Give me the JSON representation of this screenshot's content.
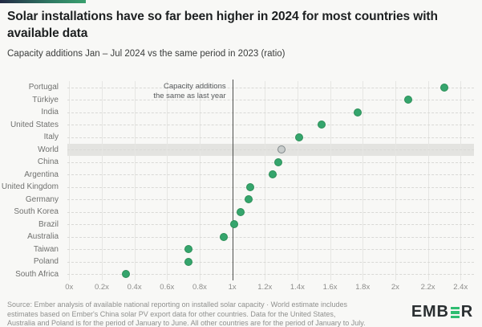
{
  "header": {
    "title": "Solar installations have so far been higher in 2024 for most countries with available data",
    "subtitle": "Capacity additions Jan – Jul 2024 vs the same period in 2023 (ratio)"
  },
  "chart_data": {
    "type": "scatter",
    "title": "Solar installations have so far been higher in 2024 for most countries with available data",
    "subtitle": "Capacity additions Jan – Jul 2024 vs the same period in 2023 (ratio)",
    "xlabel": "",
    "ylabel": "",
    "xlim": [
      0,
      2.4
    ],
    "grid": "vertical solid, horizontal dashed per category",
    "x_tick_values": [
      0,
      0.2,
      0.4,
      0.6,
      0.8,
      1,
      1.2,
      1.4,
      1.6,
      1.8,
      2,
      2.2,
      2.4
    ],
    "x_tick_labels": [
      "0x",
      "0.2x",
      "0.4x",
      "0.6x",
      "0.8x",
      "1x",
      "1.2x",
      "1.4x",
      "1.6x",
      "1.8x",
      "2x",
      "2.2x",
      "2.4x"
    ],
    "categories": [
      "Portugal",
      "Türkiye",
      "India",
      "United States",
      "Italy",
      "World",
      "China",
      "Argentina",
      "United Kingdom",
      "Germany",
      "South Korea",
      "Brazil",
      "Australia",
      "Taiwan",
      "Poland",
      "South Africa"
    ],
    "values": [
      2.3,
      2.08,
      1.77,
      1.55,
      1.41,
      1.3,
      1.28,
      1.25,
      1.11,
      1.1,
      1.05,
      1.01,
      0.95,
      0.73,
      0.73,
      0.35
    ],
    "highlight_category": "World",
    "reference_line": {
      "value": 1,
      "label_line1": "Capacity additions",
      "label_line2": "the same as last year"
    }
  },
  "colors": {
    "accent_green": "#35a56d",
    "dot_border": "#2c8f57",
    "world_dot": "#c9cdcc",
    "world_dot_border": "#81898b",
    "band": "#e3e3e0",
    "logo_green": "#2fbd71"
  },
  "footer": {
    "source": "Source: Ember analysis of available national reporting on installed solar capacity · World estimate includes\nestimates based on Ember's China solar PV export data for other countries. Data for the United States,\nAustralia and Poland is for the period of January to June. All other countries are for the period of January to July.",
    "logo_pre": "EMB",
    "logo_post": "R"
  }
}
